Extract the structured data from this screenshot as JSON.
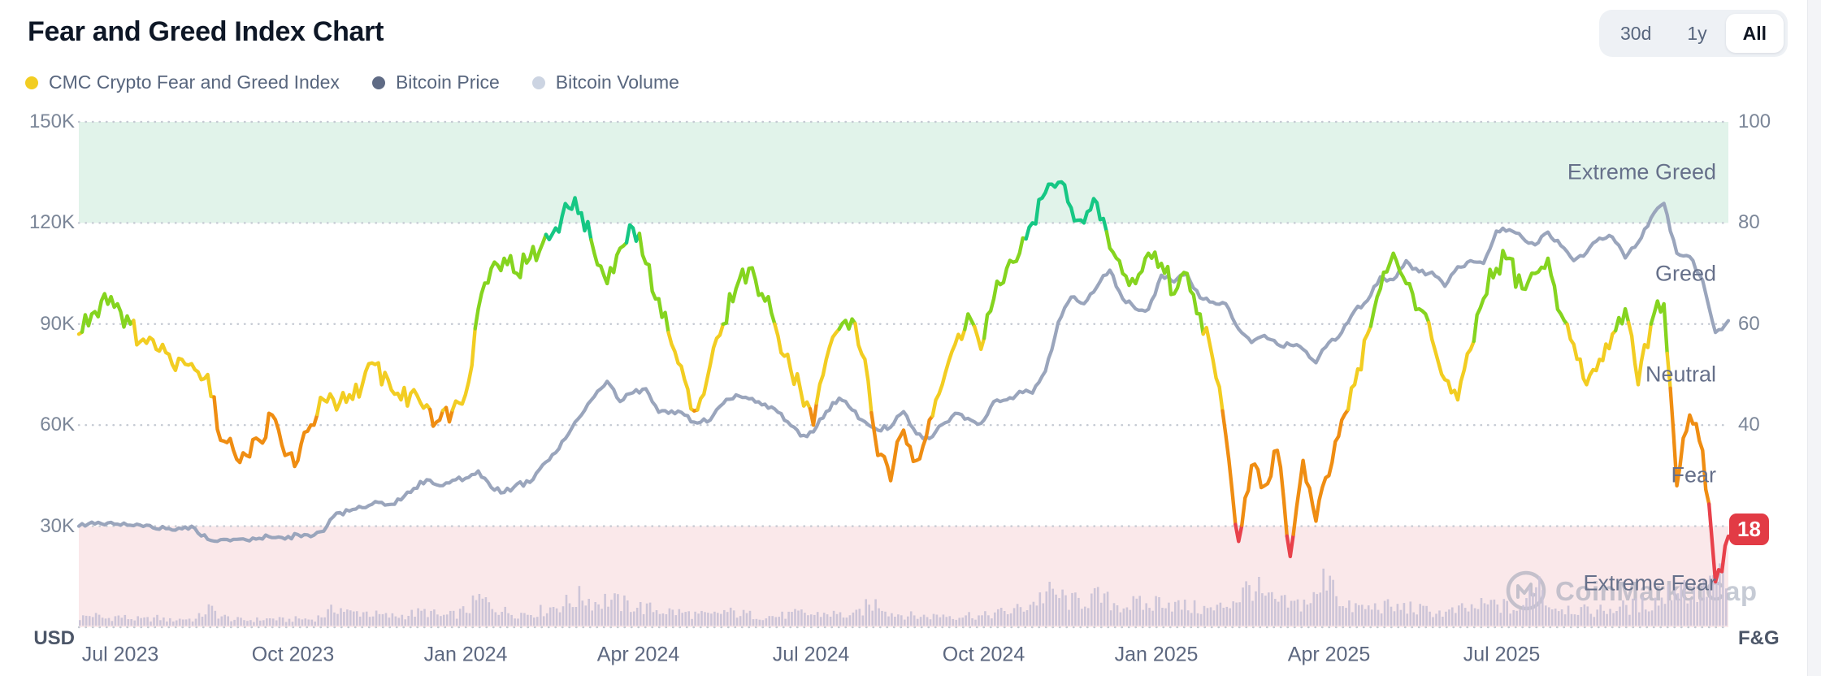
{
  "header": {
    "title": "Fear and Greed Index Chart",
    "legend": [
      {
        "label": "CMC Crypto Fear and Greed Index",
        "color": "#f2cd22"
      },
      {
        "label": "Bitcoin Price",
        "color": "#5f6b85"
      },
      {
        "label": "Bitcoin Volume",
        "color": "#ccd4e2"
      }
    ],
    "range_buttons": [
      {
        "label": "30d",
        "active": false
      },
      {
        "label": "1y",
        "active": false
      },
      {
        "label": "All",
        "active": true
      }
    ]
  },
  "badge": {
    "value": "18",
    "color": "#e23b45"
  },
  "watermark": {
    "text": "CoinMarketCap",
    "color": "#98a1b3"
  },
  "axes": {
    "left_labels": [
      "150K",
      "120K",
      "90K",
      "60K",
      "30K"
    ],
    "left_unit": "USD",
    "right_labels": [
      "100",
      "80",
      "60",
      "40"
    ],
    "right_unit": "F&G",
    "x_labels": [
      "Jul 2023",
      "Oct 2023",
      "Jan 2024",
      "Apr 2024",
      "Jul 2024",
      "Oct 2024",
      "Jan 2025",
      "Apr 2025",
      "Jul 2025"
    ]
  },
  "zones": [
    {
      "label": "Extreme Greed",
      "range": [
        80,
        100
      ],
      "band_color": "#e1f3ea",
      "label_at": 90
    },
    {
      "label": "Greed",
      "range": [
        60,
        80
      ],
      "band_color": null,
      "label_at": 70
    },
    {
      "label": "Neutral",
      "range": [
        40,
        60
      ],
      "band_color": null,
      "label_at": 50
    },
    {
      "label": "Fear",
      "range": [
        20,
        40
      ],
      "band_color": null,
      "label_at": 30
    },
    {
      "label": "Extreme Fear",
      "range": [
        0,
        20
      ],
      "band_color": "#fae8ea",
      "label_at": 10
    }
  ],
  "chart_data": {
    "type": "line",
    "title": "Fear and Greed Index Chart",
    "x_start": "2023-06-15",
    "x_end": "2025-11-05",
    "x_tick_labels": [
      "Jul 2023",
      "Oct 2023",
      "Jan 2024",
      "Apr 2024",
      "Jul 2024",
      "Oct 2024",
      "Jan 2025",
      "Apr 2025",
      "Jul 2025"
    ],
    "y_left": {
      "label": "USD",
      "ticks": [
        30000,
        60000,
        90000,
        120000,
        150000
      ],
      "range": [
        0,
        150000
      ]
    },
    "y_right": {
      "label": "F&G",
      "ticks": [
        40,
        60,
        80,
        100
      ],
      "range": [
        0,
        100
      ]
    },
    "grid": "dotted-horizontal",
    "legend_position": "top-left",
    "current_fng_value": 18,
    "fng_value_colors": [
      {
        "min": 77,
        "color": "#16c784",
        "name": "extreme-greed"
      },
      {
        "min": 59,
        "color": "#85d41f",
        "name": "greed"
      },
      {
        "min": 43,
        "color": "#f2cd22",
        "name": "neutral"
      },
      {
        "min": 21,
        "color": "#ef8d12",
        "name": "fear"
      },
      {
        "min": -1,
        "color": "#e8414b",
        "name": "extreme-fear"
      }
    ],
    "btc_line_color": "#9aa5bc",
    "volume_bar_color": "#cbc4d8",
    "series": [
      {
        "name": "CMC Crypto Fear and Greed Index",
        "axis": "right",
        "values": [
          58,
          62,
          66,
          64,
          60,
          57,
          55,
          54,
          53,
          51,
          50,
          37,
          35,
          34,
          37,
          42,
          34,
          33,
          40,
          45,
          43,
          46,
          48,
          52,
          49,
          45,
          47,
          44,
          41,
          43,
          46,
          63,
          71,
          73,
          70,
          73,
          76,
          79,
          83,
          82,
          74,
          68,
          75,
          79,
          72,
          65,
          56,
          49,
          43,
          52,
          60,
          67,
          71,
          66,
          60,
          54,
          47,
          40,
          53,
          59,
          61,
          53,
          34,
          29,
          39,
          33,
          41,
          48,
          56,
          62,
          55,
          65,
          71,
          74,
          80,
          86,
          88,
          83,
          80,
          84,
          75,
          70,
          68,
          74,
          72,
          66,
          70,
          62,
          53,
          38,
          17,
          32,
          28,
          35,
          14,
          33,
          21,
          30,
          41,
          48,
          58,
          67,
          74,
          68,
          63,
          57,
          49,
          45,
          55,
          65,
          71,
          73,
          67,
          70,
          73,
          62,
          56,
          48,
          53,
          58,
          63,
          48,
          60,
          64,
          28,
          42,
          35,
          9,
          18
        ]
      },
      {
        "name": "Bitcoin Price",
        "axis": "left",
        "unit": "USD thousands",
        "values": [
          30.0,
          31.2,
          30.4,
          30.6,
          30.3,
          29.9,
          29.2,
          29.3,
          29.2,
          29.4,
          26.1,
          26.0,
          26.1,
          25.9,
          26.4,
          26.6,
          26.2,
          27.5,
          26.9,
          28.5,
          33.9,
          34.5,
          35.5,
          37.3,
          36.4,
          37.8,
          41.2,
          43.8,
          42.0,
          43.6,
          44.2,
          46.4,
          41.5,
          40.0,
          42.5,
          43.0,
          48.2,
          51.8,
          57.4,
          63.0,
          68.5,
          73.0,
          67.0,
          69.6,
          70.8,
          63.8,
          64.2,
          63.0,
          60.6,
          61.5,
          66.4,
          69.0,
          67.8,
          66.0,
          64.8,
          61.0,
          56.8,
          58.0,
          64.0,
          68.0,
          64.5,
          61.0,
          58.5,
          59.4,
          64.0,
          57.4,
          56.0,
          60.2,
          63.5,
          62.0,
          60.5,
          67.0,
          67.5,
          70.0,
          69.5,
          76.0,
          90.5,
          98.0,
          96.0,
          101.0,
          106.0,
          97.5,
          94.5,
          94.4,
          104.5,
          102.5,
          104.8,
          97.8,
          96.5,
          96.0,
          88.5,
          84.5,
          86.6,
          84.0,
          83.8,
          82.5,
          78.5,
          84.5,
          87.5,
          94.0,
          97.0,
          104.0,
          103.2,
          108.8,
          105.5,
          105.4,
          101.2,
          107.0,
          108.8,
          108.0,
          117.6,
          118.0,
          115.7,
          113.5,
          117.3,
          113.3,
          108.8,
          111.2,
          115.5,
          115.8,
          109.6,
          114.2,
          121.5,
          125.8,
          111.0,
          110.0,
          103.0,
          87.5,
          91.0
        ]
      },
      {
        "name": "Bitcoin Volume",
        "axis": "left",
        "unit": "relative",
        "values": [
          10,
          14,
          9,
          12,
          9,
          8,
          10,
          7,
          9,
          8,
          22,
          12,
          8,
          7,
          8,
          9,
          7,
          9,
          8,
          14,
          24,
          16,
          18,
          14,
          12,
          13,
          16,
          18,
          12,
          14,
          20,
          34,
          26,
          18,
          16,
          16,
          20,
          26,
          30,
          38,
          30,
          34,
          28,
          26,
          22,
          20,
          18,
          16,
          14,
          13,
          18,
          16,
          14,
          12,
          12,
          14,
          16,
          14,
          16,
          14,
          12,
          24,
          30,
          16,
          14,
          12,
          12,
          14,
          12,
          14,
          12,
          16,
          18,
          22,
          30,
          42,
          38,
          30,
          34,
          36,
          30,
          26,
          28,
          24,
          36,
          26,
          24,
          22,
          20,
          28,
          38,
          54,
          34,
          30,
          26,
          30,
          36,
          78,
          22,
          24,
          22,
          26,
          22,
          24,
          20,
          18,
          16,
          20,
          22,
          26,
          28,
          22,
          20,
          70,
          26,
          24,
          22,
          18,
          20,
          22,
          24,
          26,
          30,
          36,
          60,
          40,
          44,
          66,
          40
        ]
      }
    ]
  }
}
